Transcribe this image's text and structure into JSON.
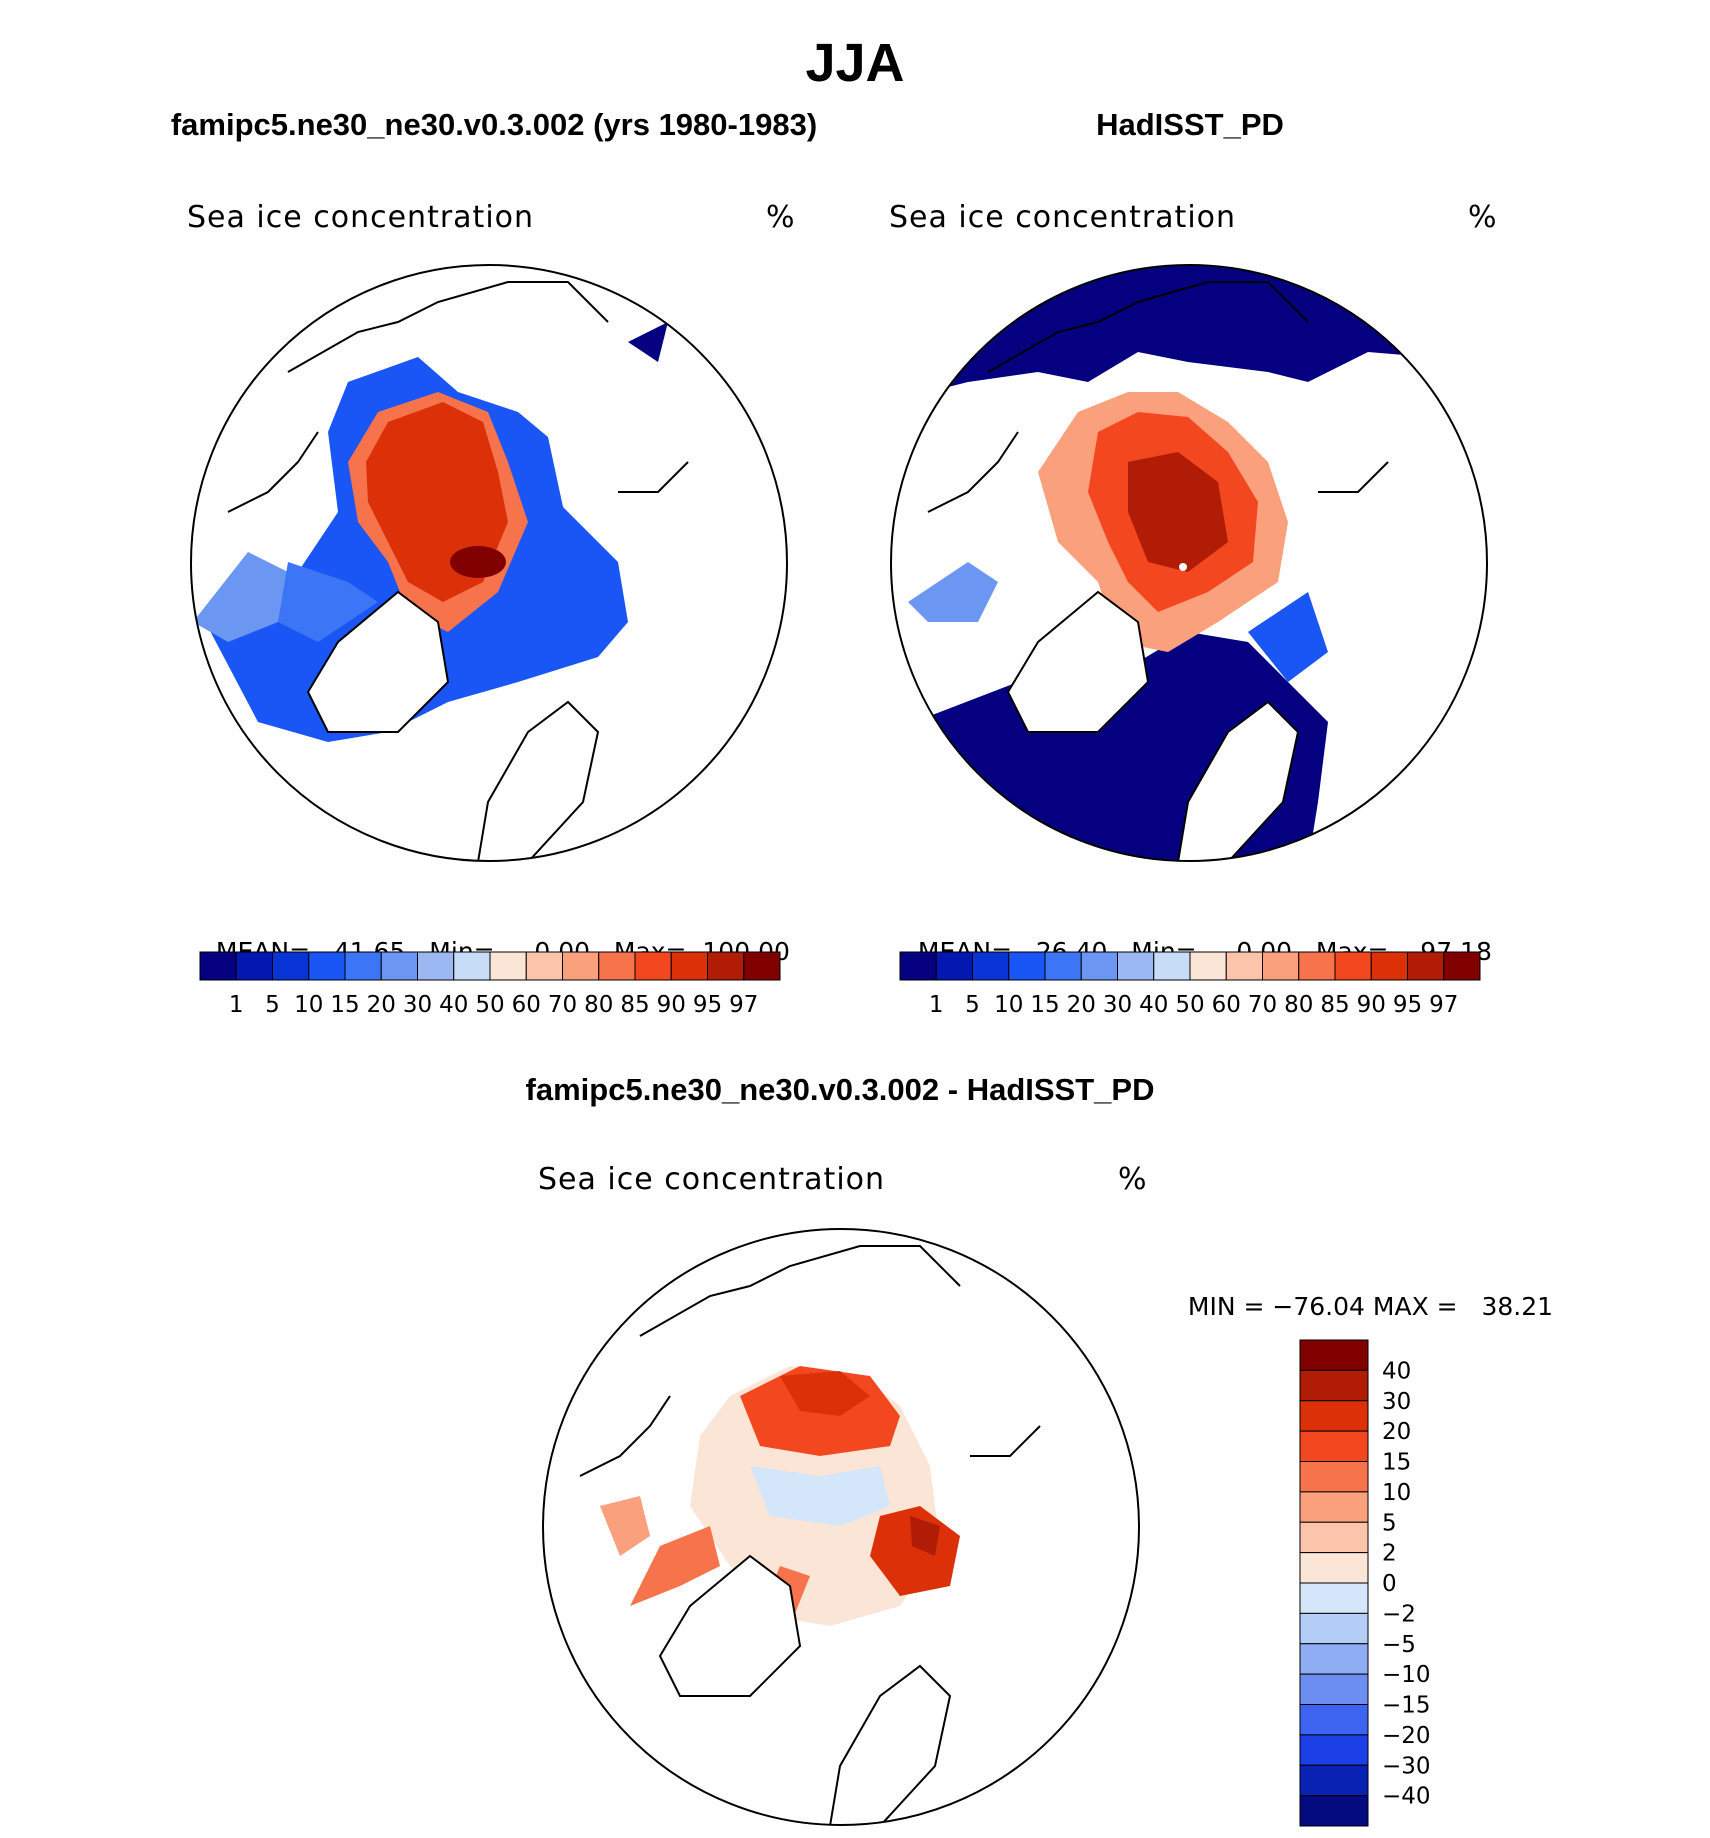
{
  "figure": {
    "title": "JJA"
  },
  "panels": [
    {
      "title": "famipc5.ne30_ne30.v0.3.002 (yrs 1980-1983)",
      "field": "Sea ice concentration",
      "unit": "%",
      "stats": {
        "mean_label": "MEAN=",
        "mean": "41.65",
        "min_label": "Min=",
        "min": "0.00",
        "max_label": "Max=",
        "max": "100.00"
      },
      "map": {
        "type": "north-polar-stereographic",
        "variable": "sea ice concentration"
      }
    },
    {
      "title": "HadISST_PD",
      "field": "Sea ice concentration",
      "unit": "%",
      "stats": {
        "mean_label": "MEAN=",
        "mean": "26.40",
        "min_label": "Min=",
        "min": "0.00",
        "max_label": "Max=",
        "max": "97.18"
      },
      "map": {
        "type": "north-polar-stereographic",
        "variable": "sea ice concentration"
      }
    },
    {
      "title": "famipc5.ne30_ne30.v0.3.002 - HadISST_PD",
      "field": "Sea ice concentration",
      "unit": "%",
      "stats": {
        "min_label": "MIN =",
        "min": "−76.04",
        "max_label": "MAX =",
        "max": "38.21"
      },
      "map": {
        "type": "north-polar-stereographic",
        "variable": "sea ice concentration difference"
      }
    }
  ],
  "colorbar_abs": {
    "orientation": "horizontal",
    "colors": [
      "#040080",
      "#0318b0",
      "#0a35d6",
      "#1a55f5",
      "#3c75f5",
      "#6b96f2",
      "#9bb8f3",
      "#c6dcf7",
      "#fbe5d6",
      "#fbc4ab",
      "#fba07d",
      "#f7734b",
      "#f34720",
      "#dc3108",
      "#b01c05",
      "#800000"
    ],
    "labels": [
      "1",
      "5",
      "10",
      "15",
      "20",
      "30",
      "40",
      "50",
      "60",
      "70",
      "80",
      "85",
      "90",
      "95",
      "97"
    ]
  },
  "colorbar_diff": {
    "orientation": "vertical",
    "colors": [
      "#800000",
      "#b01c05",
      "#dc3108",
      "#f34720",
      "#f7734b",
      "#fba07d",
      "#fbc4ab",
      "#fbe5d6",
      "#d4e6fa",
      "#b4cdf6",
      "#8eadf2",
      "#6b8ef0",
      "#3d64f0",
      "#1a3fe6",
      "#0a22b4",
      "#040a80"
    ],
    "labels": [
      "40",
      "30",
      "20",
      "15",
      "10",
      "5",
      "2",
      "0",
      "−2",
      "−5",
      "−10",
      "−15",
      "−20",
      "−30",
      "−40"
    ]
  }
}
